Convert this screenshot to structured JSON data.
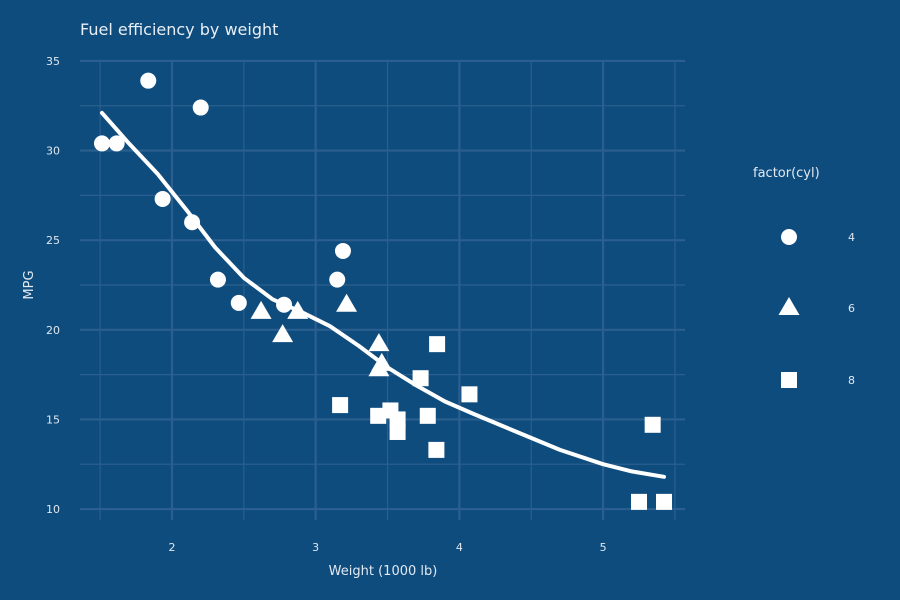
{
  "chart_data": {
    "type": "scatter",
    "title": "Fuel efficiency by weight",
    "xlabel": "Weight (1000 lb)",
    "ylabel": "MPG",
    "xlim": [
      1.36,
      5.57
    ],
    "ylim": [
      9.5,
      35.5
    ],
    "x_ticks": [
      2,
      3,
      4,
      5
    ],
    "y_ticks": [
      10,
      15,
      20,
      25,
      30,
      35
    ],
    "grid": true,
    "legend": {
      "title": "factor(cyl)",
      "position": "right",
      "entries": [
        {
          "label": "4",
          "shape": "circle"
        },
        {
          "label": "6",
          "shape": "triangle"
        },
        {
          "label": "8",
          "shape": "square"
        }
      ]
    },
    "colors": {
      "background": "#0f4c7e",
      "marker": "#ffffff",
      "grid": "#2a5f8f"
    },
    "series": [
      {
        "name": "4",
        "shape": "circle",
        "points": [
          {
            "x": 1.513,
            "y": 30.4
          },
          {
            "x": 1.615,
            "y": 30.4
          },
          {
            "x": 1.835,
            "y": 33.9
          },
          {
            "x": 1.935,
            "y": 27.3
          },
          {
            "x": 2.14,
            "y": 26.0
          },
          {
            "x": 2.2,
            "y": 32.4
          },
          {
            "x": 2.32,
            "y": 22.8
          },
          {
            "x": 2.465,
            "y": 21.5
          },
          {
            "x": 2.78,
            "y": 21.4
          },
          {
            "x": 3.15,
            "y": 22.8
          },
          {
            "x": 3.19,
            "y": 24.4
          }
        ]
      },
      {
        "name": "6",
        "shape": "triangle",
        "points": [
          {
            "x": 2.62,
            "y": 21.0
          },
          {
            "x": 2.77,
            "y": 19.7
          },
          {
            "x": 2.875,
            "y": 21.0
          },
          {
            "x": 3.215,
            "y": 21.4
          },
          {
            "x": 3.44,
            "y": 19.2
          },
          {
            "x": 3.44,
            "y": 17.8
          },
          {
            "x": 3.46,
            "y": 18.1
          }
        ]
      },
      {
        "name": "8",
        "shape": "square",
        "points": [
          {
            "x": 3.17,
            "y": 15.8
          },
          {
            "x": 3.435,
            "y": 15.2
          },
          {
            "x": 3.52,
            "y": 15.5
          },
          {
            "x": 3.57,
            "y": 14.3
          },
          {
            "x": 3.57,
            "y": 15.0
          },
          {
            "x": 3.73,
            "y": 17.3
          },
          {
            "x": 3.78,
            "y": 15.2
          },
          {
            "x": 3.84,
            "y": 13.3
          },
          {
            "x": 3.845,
            "y": 19.2
          },
          {
            "x": 4.07,
            "y": 16.4
          },
          {
            "x": 5.25,
            "y": 10.4
          },
          {
            "x": 5.345,
            "y": 14.7
          },
          {
            "x": 5.424,
            "y": 10.4
          }
        ]
      }
    ],
    "trend_line": [
      {
        "x": 1.513,
        "y": 32.1
      },
      {
        "x": 1.7,
        "y": 30.4
      },
      {
        "x": 1.9,
        "y": 28.7
      },
      {
        "x": 2.1,
        "y": 26.7
      },
      {
        "x": 2.3,
        "y": 24.6
      },
      {
        "x": 2.5,
        "y": 22.9
      },
      {
        "x": 2.7,
        "y": 21.7
      },
      {
        "x": 2.9,
        "y": 21.0
      },
      {
        "x": 3.1,
        "y": 20.2
      },
      {
        "x": 3.3,
        "y": 19.1
      },
      {
        "x": 3.5,
        "y": 17.9
      },
      {
        "x": 3.7,
        "y": 16.9
      },
      {
        "x": 3.9,
        "y": 16.0
      },
      {
        "x": 4.1,
        "y": 15.3
      },
      {
        "x": 4.4,
        "y": 14.3
      },
      {
        "x": 4.7,
        "y": 13.3
      },
      {
        "x": 5.0,
        "y": 12.5
      },
      {
        "x": 5.2,
        "y": 12.1
      },
      {
        "x": 5.424,
        "y": 11.8
      }
    ]
  }
}
